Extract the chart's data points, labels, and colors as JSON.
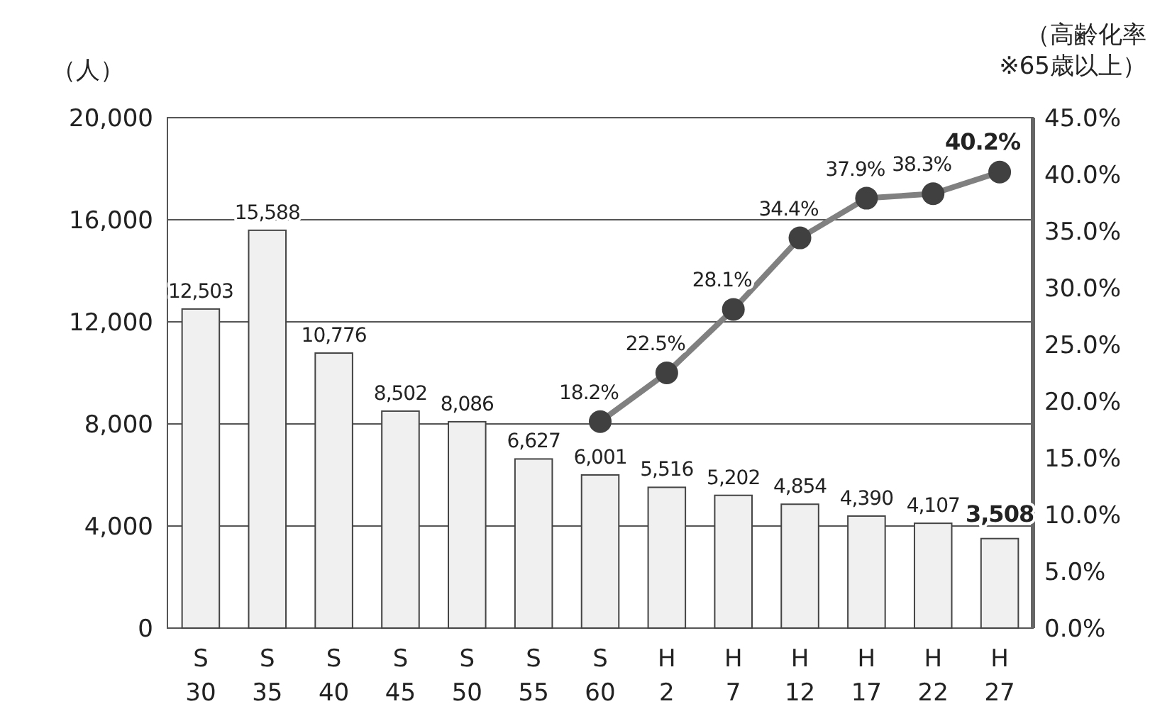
{
  "chart_data": {
    "type": "bar",
    "ylabel": "（人）",
    "y2label": "（高齢化率 ※65歳以上）",
    "categories": [
      "S 30",
      "S 35",
      "S 40",
      "S 45",
      "S 50",
      "S 55",
      "S 60",
      "H 2",
      "H 7",
      "H 12",
      "H 17",
      "H 22",
      "H 27"
    ],
    "series": [
      {
        "color": "#f0f0f0",
        "values": [
          12503,
          15588,
          10776,
          8502,
          8086,
          6627,
          6001,
          5516,
          5202,
          4854,
          4390,
          4107,
          3508
        ],
        "value_labels": [
          "12,503",
          "15,588",
          "10,776",
          "8,502",
          "8,086",
          "6,627",
          "6,001",
          "5,516",
          "5,202",
          "4,854",
          "4,390",
          "4,107",
          "3,508"
        ]
      },
      {
        "type": "line",
        "axis": "y2",
        "color": "#808080",
        "values": [
          null,
          null,
          null,
          null,
          null,
          null,
          18.2,
          22.5,
          28.1,
          34.4,
          37.9,
          38.3,
          40.2
        ],
        "value_labels": [
          null,
          null,
          null,
          null,
          null,
          null,
          "18.2%",
          "22.5%",
          "28.1%",
          "34.4%",
          "37.9%",
          "38.3%",
          "40.2%"
        ]
      }
    ],
    "ylim": [
      0,
      20000
    ],
    "yticks": [
      0,
      {
        "value": 4000,
        "label": "4,000"
      },
      {
        "value": 8000,
        "label": "8,000"
      },
      {
        "value": 12000,
        "label": "12,000"
      },
      {
        "value": 16000,
        "label": "16,000"
      },
      {
        "value": 20000,
        "label": "20,000"
      }
    ],
    "y2lim": [
      0,
      45
    ],
    "y2ticks": [
      {
        "value": 0,
        "label": "0.0%"
      },
      {
        "value": 5,
        "label": "5.0%"
      },
      {
        "value": 10,
        "label": "10.0%"
      },
      {
        "value": 15,
        "label": "15.0%"
      },
      {
        "value": 20,
        "label": "20.0%"
      },
      {
        "value": 25,
        "label": "25.0%"
      },
      {
        "value": 30,
        "label": "30.0%"
      },
      {
        "value": 35,
        "label": "35.0%"
      },
      {
        "value": 40,
        "label": "40.0%"
      },
      {
        "value": 45,
        "label": "45.0%"
      }
    ],
    "grid": "y",
    "marker": "circle"
  }
}
